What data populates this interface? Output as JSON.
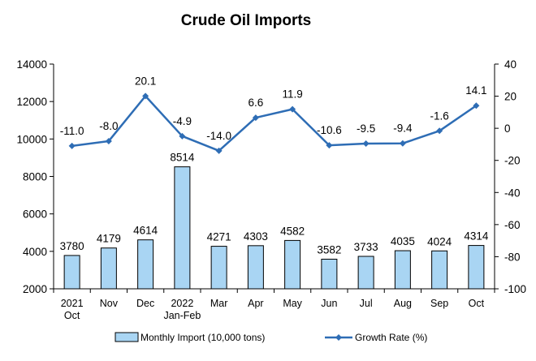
{
  "chart_data": {
    "type": "bar",
    "title": "Crude Oil Imports",
    "categories": [
      [
        "2021",
        "Oct"
      ],
      [
        "Nov"
      ],
      [
        "Dec"
      ],
      [
        "2022",
        "Jan-Feb"
      ],
      [
        "Mar"
      ],
      [
        "Apr"
      ],
      [
        "May"
      ],
      [
        "Jun"
      ],
      [
        "Jul"
      ],
      [
        "Aug"
      ],
      [
        "Sep"
      ],
      [
        "Oct"
      ]
    ],
    "series": [
      {
        "name": "Monthly Import (10,000 tons)",
        "type": "bar",
        "axis": "left",
        "values": [
          3780,
          4179,
          4614,
          8514,
          4271,
          4303,
          4582,
          3582,
          3733,
          4035,
          4024,
          4314
        ],
        "labels": [
          "3780",
          "4179",
          "4614",
          "8514",
          "4271",
          "4303",
          "4582",
          "3582",
          "3733",
          "4035",
          "4024",
          "4314"
        ]
      },
      {
        "name": "Growth Rate (%)",
        "type": "line",
        "axis": "right",
        "values": [
          -11.0,
          -8.0,
          20.1,
          -4.9,
          -14.0,
          6.6,
          11.9,
          -10.6,
          -9.5,
          -9.4,
          -1.6,
          14.1
        ],
        "labels": [
          "-11.0",
          "-8.0",
          "20.1",
          "-4.9",
          "-14.0",
          "6.6",
          "11.9",
          "-10.6",
          "-9.5",
          "-9.4",
          "-1.6",
          "14.1"
        ]
      }
    ],
    "y_left": {
      "min": 2000,
      "max": 14000,
      "ticks": [
        2000,
        4000,
        6000,
        8000,
        10000,
        12000,
        14000
      ]
    },
    "y_right": {
      "min": -100,
      "max": 40,
      "ticks": [
        -100,
        -80,
        -60,
        -40,
        -20,
        0,
        20,
        40
      ]
    },
    "grid": false,
    "legend_position": "bottom",
    "colors": {
      "bar_fill": "#a9d5f3",
      "bar_stroke": "#000000",
      "line": "#2e6db5",
      "axis": "#000000"
    }
  }
}
